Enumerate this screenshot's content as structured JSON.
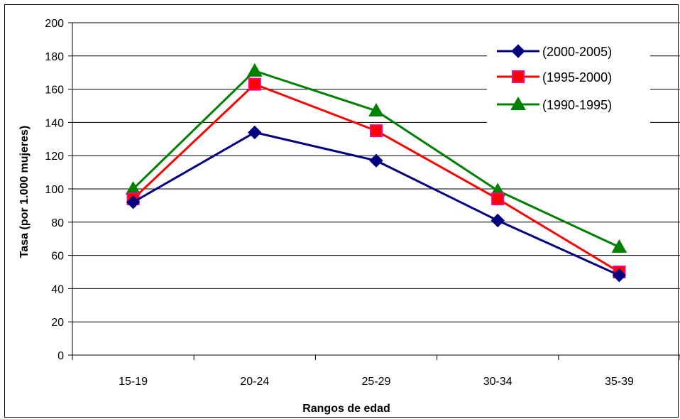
{
  "chart_data": {
    "type": "line",
    "title": "",
    "xlabel": "Rangos de edad",
    "ylabel": "Tasa (por 1.000 mujeres)",
    "categories": [
      "15-19",
      "20-24",
      "25-29",
      "30-34",
      "35-39"
    ],
    "ylim": [
      0,
      200
    ],
    "yticks": [
      "0",
      "20",
      "40",
      "60",
      "80",
      "100",
      "120",
      "140",
      "160",
      "180",
      "200"
    ],
    "grid": "horizontal",
    "legend_position": "top-right",
    "series": [
      {
        "name": "(2000-2005)",
        "values": [
          92,
          134,
          117,
          81,
          48
        ],
        "color": "#000080",
        "marker": "diamond"
      },
      {
        "name": "(1995-2000)",
        "values": [
          94,
          163,
          135,
          94,
          50
        ],
        "color": "#ff0000",
        "marker": "square",
        "marker_fill": "#ff0080"
      },
      {
        "name": "(1990-1995)",
        "values": [
          100,
          171,
          147,
          99,
          65
        ],
        "color": "#008000",
        "marker": "triangle"
      }
    ]
  }
}
